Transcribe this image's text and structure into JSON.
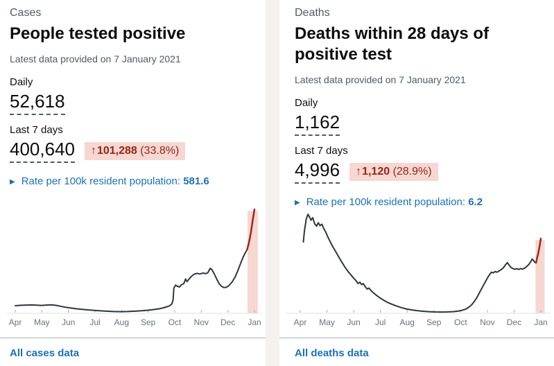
{
  "colors": {
    "page_bg": "#f3f2f1",
    "card_bg": "#ffffff",
    "text_dark": "#0b0c0c",
    "text_grey": "#505a5f",
    "accent_blue": "#1d70b8",
    "badge_bg": "#f6d7d2",
    "badge_text": "#942514",
    "line_dark": "#2f353a",
    "line_red": "#a32518",
    "band_pink": "#f6d7d2",
    "divider": "#b1b4b6",
    "axis_line": "#dde0e1",
    "axis_tick": "#a9adb1",
    "axis_label": "#6b7276"
  },
  "cards": [
    {
      "category": "Cases",
      "title": "People tested positive",
      "updated": "Latest data provided on 7 January 2021",
      "daily_label": "Daily",
      "daily_value": "52,618",
      "week_label": "Last 7 days",
      "week_value": "400,640",
      "change": {
        "arrow": "↑",
        "value": "101,288",
        "percent": "(33.8%)"
      },
      "rate_label": "Rate per 100k resident population:",
      "rate_value": "581.6",
      "footer_link": "All cases data"
    },
    {
      "category": "Deaths",
      "title": "Deaths within 28 days of positive test",
      "updated": "Latest data provided on 7 January 2021",
      "daily_label": "Daily",
      "daily_value": "1,162",
      "week_label": "Last 7 days",
      "week_value": "4,996",
      "change": {
        "arrow": "↑",
        "value": "1,120",
        "percent": "(28.9%)"
      },
      "rate_label": "Rate per 100k resident population:",
      "rate_value": "6.2",
      "footer_link": "All deaths data"
    }
  ],
  "chart_data": [
    {
      "type": "line",
      "title": "Daily people tested positive, Apr 2020 - Jan 2021",
      "x_tick_labels": [
        "Apr",
        "May",
        "Jun",
        "Jul",
        "Aug",
        "Sep",
        "Oct",
        "Nov",
        "Dec",
        "Jan"
      ],
      "ylim": [
        0,
        60000
      ],
      "grid": false,
      "legend": "none",
      "line_color": "#2f353a",
      "red_color": "#a32518",
      "band_color": "#f6d7d2",
      "highlight": {
        "red_from": 0.97,
        "band": [
          0.971,
          1.014
        ]
      },
      "series": [
        {
          "name": "daily-cases",
          "points": [
            [
              0.0,
              4400
            ],
            [
              0.02,
              4600
            ],
            [
              0.045,
              4750
            ],
            [
              0.07,
              4850
            ],
            [
              0.09,
              4700
            ],
            [
              0.11,
              4550
            ],
            [
              0.13,
              4750
            ],
            [
              0.15,
              4900
            ],
            [
              0.17,
              4600
            ],
            [
              0.19,
              4100
            ],
            [
              0.21,
              3500
            ],
            [
              0.235,
              3000
            ],
            [
              0.26,
              2550
            ],
            [
              0.29,
              2150
            ],
            [
              0.32,
              1800
            ],
            [
              0.35,
              1500
            ],
            [
              0.38,
              1250
            ],
            [
              0.41,
              1050
            ],
            [
              0.44,
              950
            ],
            [
              0.47,
              1050
            ],
            [
              0.5,
              1250
            ],
            [
              0.53,
              1500
            ],
            [
              0.555,
              1800
            ],
            [
              0.58,
              2200
            ],
            [
              0.605,
              2700
            ],
            [
              0.625,
              3400
            ],
            [
              0.645,
              4300
            ],
            [
              0.655,
              5500
            ],
            [
              0.66,
              8000
            ],
            [
              0.663,
              14500
            ],
            [
              0.67,
              16300
            ],
            [
              0.678,
              15600
            ],
            [
              0.686,
              15200
            ],
            [
              0.695,
              16500
            ],
            [
              0.705,
              17200
            ],
            [
              0.712,
              19800
            ],
            [
              0.718,
              18300
            ],
            [
              0.725,
              19500
            ],
            [
              0.735,
              21200
            ],
            [
              0.748,
              22600
            ],
            [
              0.76,
              23100
            ],
            [
              0.772,
              22700
            ],
            [
              0.785,
              23300
            ],
            [
              0.795,
              22900
            ],
            [
              0.805,
              23400
            ],
            [
              0.815,
              26000
            ],
            [
              0.822,
              25200
            ],
            [
              0.832,
              22800
            ],
            [
              0.842,
              19800
            ],
            [
              0.852,
              17200
            ],
            [
              0.862,
              15600
            ],
            [
              0.872,
              14900
            ],
            [
              0.882,
              15000
            ],
            [
              0.892,
              15800
            ],
            [
              0.905,
              17800
            ],
            [
              0.918,
              20600
            ],
            [
              0.93,
              24500
            ],
            [
              0.942,
              28800
            ],
            [
              0.952,
              32200
            ],
            [
              0.96,
              34500
            ],
            [
              0.97,
              37000
            ],
            [
              0.978,
              41500
            ],
            [
              0.985,
              46500
            ],
            [
              0.992,
              53000
            ],
            [
              1.0,
              60000
            ]
          ]
        }
      ]
    },
    {
      "type": "line",
      "title": "Daily deaths within 28 days of positive test, Apr 2020 - Jan 2021",
      "x_tick_labels": [
        "Apr",
        "May",
        "Jun",
        "Jul",
        "Aug",
        "Sep",
        "Oct",
        "Nov",
        "Dec",
        "Jan"
      ],
      "ylim": [
        0,
        1050
      ],
      "grid": false,
      "legend": "none",
      "line_color": "#2f353a",
      "red_color": "#a32518",
      "band_color": "#f6d7d2",
      "highlight": {
        "red_from": 0.98,
        "band": [
          0.978,
          1.016
        ]
      },
      "series": [
        {
          "name": "daily-deaths",
          "points": [
            [
              0.013,
              720
            ],
            [
              0.018,
              840
            ],
            [
              0.025,
              950
            ],
            [
              0.032,
              1000
            ],
            [
              0.038,
              975
            ],
            [
              0.045,
              940
            ],
            [
              0.052,
              965
            ],
            [
              0.06,
              905
            ],
            [
              0.068,
              880
            ],
            [
              0.075,
              915
            ],
            [
              0.082,
              885
            ],
            [
              0.09,
              900
            ],
            [
              0.098,
              855
            ],
            [
              0.106,
              820
            ],
            [
              0.115,
              770
            ],
            [
              0.125,
              720
            ],
            [
              0.135,
              675
            ],
            [
              0.148,
              620
            ],
            [
              0.16,
              570
            ],
            [
              0.172,
              520
            ],
            [
              0.185,
              470
            ],
            [
              0.198,
              425
            ],
            [
              0.21,
              390
            ],
            [
              0.222,
              355
            ],
            [
              0.232,
              330
            ],
            [
              0.24,
              300
            ],
            [
              0.248,
              315
            ],
            [
              0.255,
              290
            ],
            [
              0.262,
              300
            ],
            [
              0.27,
              270
            ],
            [
              0.278,
              245
            ],
            [
              0.286,
              255
            ],
            [
              0.294,
              230
            ],
            [
              0.305,
              205
            ],
            [
              0.318,
              180
            ],
            [
              0.332,
              155
            ],
            [
              0.348,
              130
            ],
            [
              0.365,
              108
            ],
            [
              0.382,
              90
            ],
            [
              0.4,
              74
            ],
            [
              0.42,
              58
            ],
            [
              0.44,
              45
            ],
            [
              0.462,
              35
            ],
            [
              0.485,
              27
            ],
            [
              0.51,
              21
            ],
            [
              0.535,
              17
            ],
            [
              0.56,
              14
            ],
            [
              0.585,
              13
            ],
            [
              0.61,
              14
            ],
            [
              0.635,
              17
            ],
            [
              0.655,
              22
            ],
            [
              0.672,
              30
            ],
            [
              0.688,
              42
            ],
            [
              0.7,
              60
            ],
            [
              0.712,
              85
            ],
            [
              0.722,
              115
            ],
            [
              0.732,
              150
            ],
            [
              0.742,
              195
            ],
            [
              0.752,
              240
            ],
            [
              0.762,
              285
            ],
            [
              0.772,
              330
            ],
            [
              0.78,
              365
            ],
            [
              0.788,
              395
            ],
            [
              0.795,
              415
            ],
            [
              0.802,
              408
            ],
            [
              0.81,
              422
            ],
            [
              0.818,
              415
            ],
            [
              0.826,
              428
            ],
            [
              0.835,
              440
            ],
            [
              0.845,
              462
            ],
            [
              0.853,
              490
            ],
            [
              0.861,
              512
            ],
            [
              0.868,
              488
            ],
            [
              0.876,
              462
            ],
            [
              0.884,
              452
            ],
            [
              0.892,
              445
            ],
            [
              0.9,
              450
            ],
            [
              0.908,
              443
            ],
            [
              0.916,
              452
            ],
            [
              0.924,
              446
            ],
            [
              0.932,
              456
            ],
            [
              0.94,
              470
            ],
            [
              0.95,
              492
            ],
            [
              0.958,
              520
            ],
            [
              0.964,
              548
            ],
            [
              0.97,
              532
            ],
            [
              0.975,
              515
            ],
            [
              0.98,
              510
            ],
            [
              0.985,
              565
            ],
            [
              0.99,
              615
            ],
            [
              0.995,
              680
            ],
            [
              1.0,
              755
            ]
          ]
        }
      ]
    }
  ]
}
